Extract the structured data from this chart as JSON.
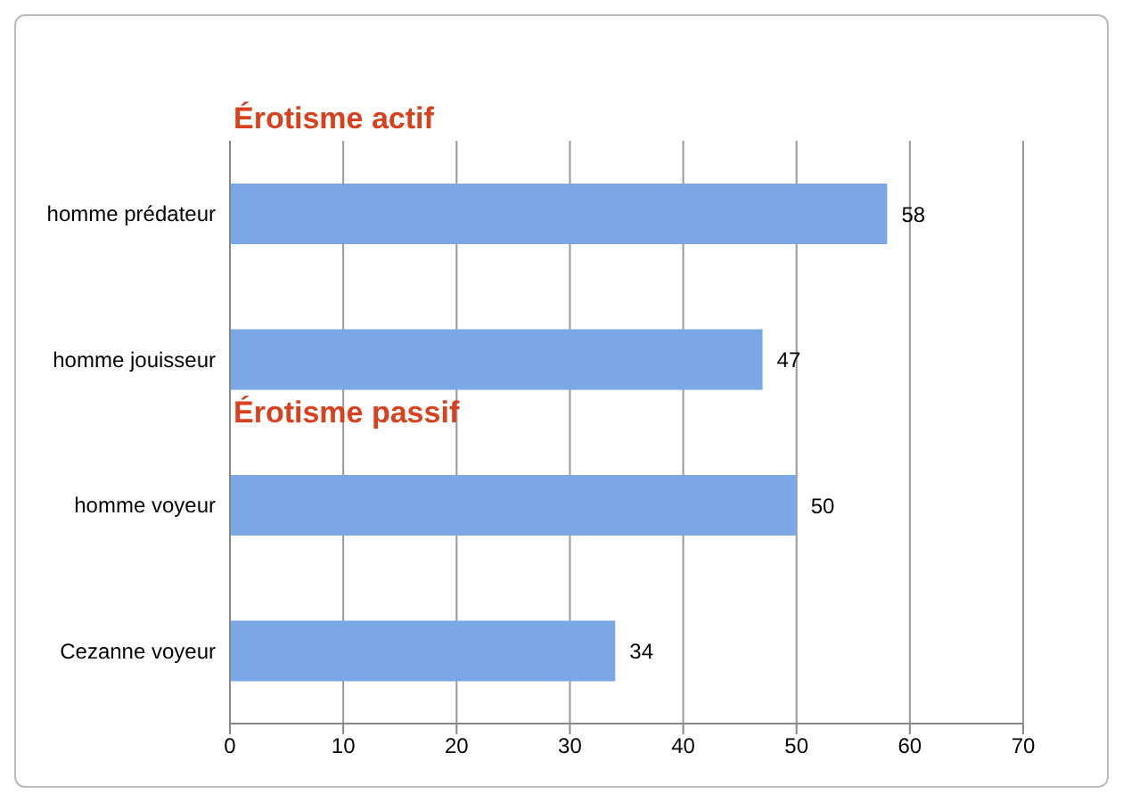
{
  "chart_data": {
    "type": "bar",
    "orientation": "horizontal",
    "categories": [
      "homme prédateur",
      "homme jouisseur",
      "homme voyeur",
      "Cezanne voyeur"
    ],
    "values": [
      58,
      47,
      50,
      34
    ],
    "color": "#7ba7e6",
    "xlim": [
      0,
      70
    ],
    "xticks": [
      0,
      10,
      20,
      30,
      40,
      50,
      60,
      70
    ],
    "grid": "x",
    "data_labels": true,
    "legend": false,
    "annotations": [
      "Érotisme actif",
      "Érotisme passif"
    ]
  }
}
